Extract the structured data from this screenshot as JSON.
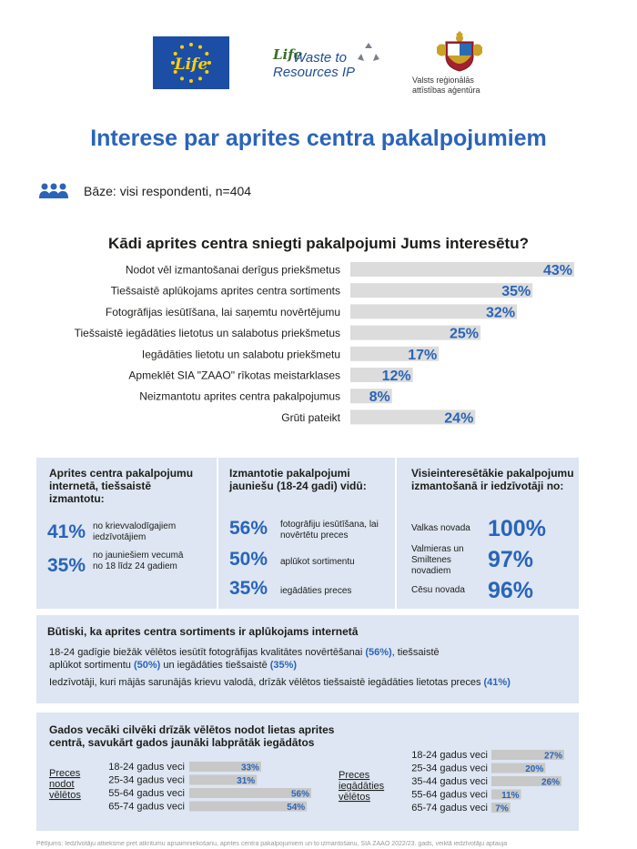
{
  "header": {
    "eu_logo_text": "Life",
    "lwr_logo": {
      "life": "Life",
      "line1": "Waste to",
      "line2": "Resources IP"
    },
    "agency": {
      "line1": "Valsts reģionālās",
      "line2": "attīstības aģentūra"
    }
  },
  "title": "Interese par aprites centra pakalpojumiem",
  "base": {
    "text": "Bāze: visi respondenti, n=404",
    "icon": "people-icon"
  },
  "question": "Kādi aprites centra sniegti pakalpojumi Jums interesētu?",
  "colors": {
    "accent": "#2a64b8",
    "bar": "#dcdcdc",
    "box": "#dde6f2"
  },
  "chart_data": [
    {
      "type": "bar",
      "orientation": "horizontal",
      "categories": [
        "Nodot vēl izmantošanai derīgus priekšmetus",
        "Tiešsaistē aplūkojams aprites centra sortiments",
        "Fotogrāfijas iesūtīšana, lai saņemtu novērtējumu",
        "Tiešsaistē iegādāties lietotus un salabotus priekšmetus",
        "Iegādāties lietotu un salabotu priekšmetu",
        "Apmeklēt SIA \"ZAAO\" rīkotas meistarklases",
        "Neizmantotu aprites centra pakalpojumus",
        "Grūti pateikt"
      ],
      "values": [
        43,
        35,
        32,
        25,
        17,
        12,
        8,
        24
      ],
      "labels": [
        "43%",
        "35%",
        "32%",
        "25%",
        "17%",
        "12%",
        "8%",
        "24%"
      ],
      "xlim": [
        0,
        43
      ]
    },
    {
      "type": "bar",
      "orientation": "horizontal",
      "title": "Preces nodot vēlētos",
      "categories": [
        "18-24 gadus veci",
        "25-34 gadus veci",
        "55-64 gadus veci",
        "65-74 gadus veci"
      ],
      "values": [
        33,
        31,
        56,
        54
      ],
      "labels": [
        "33%",
        "31%",
        "56%",
        "54%"
      ],
      "xlim": [
        0,
        56
      ]
    },
    {
      "type": "bar",
      "orientation": "horizontal",
      "title": "Preces iegādāties vēlētos",
      "categories": [
        "18-24 gadus veci",
        "25-34 gadus veci",
        "35-44 gadus veci",
        "55-64 gadus veci",
        "65-74 gadus veci"
      ],
      "values": [
        27,
        20,
        26,
        11,
        7
      ],
      "labels": [
        "27%",
        "20%",
        "26%",
        "11%",
        "7%"
      ],
      "xlim": [
        0,
        27
      ]
    }
  ],
  "box1": {
    "title": "Aprites centra pakalpojumu internetā, tiešsaistē izmantotu:",
    "items": [
      {
        "pct": "41%",
        "text": "no krievvalodīgajiem iedzīvotājiem"
      },
      {
        "pct": "35%",
        "text": "no jauniešiem vecumā no 18 līdz 24 gadiem"
      }
    ]
  },
  "box2": {
    "title": "Izmantotie pakalpojumi jauniešu (18-24 gadi) vidū:",
    "items": [
      {
        "pct": "56%",
        "text": "fotogrāfiju iesūtīšana, lai novērtētu preces"
      },
      {
        "pct": "50%",
        "text": "aplūkot sortimentu"
      },
      {
        "pct": "35%",
        "text": "iegādāties preces"
      }
    ]
  },
  "box3": {
    "title": "Visieinteresētākie pakalpojumu izmantošanā ir iedzīvotāji no:",
    "items": [
      {
        "text": "Valkas novada",
        "pct": "100%"
      },
      {
        "text": "Valmieras un Smiltenes novadiem",
        "pct": "97%"
      },
      {
        "text": "Cēsu novada",
        "pct": "96%"
      }
    ]
  },
  "box4": {
    "title": "Būtiski, ka aprites centra sortiments ir aplūkojams internetā",
    "p1_a": "18-24 gadīgie biežāk vēlētos iesūtīt fotogrāfijas kvalitātes novērtēšanai ",
    "p1_a_pct": "(56%)",
    "p1_b": ", tiešsaistē aplūkot sortimentu ",
    "p1_b_pct": "(50%)",
    "p1_c": " un iegādāties tiešsaistē ",
    "p1_c_pct": "(35%)",
    "p2": "Iedzīvotāji, kuri mājās sarunājās krievu valodā, drīzāk vēlētos tiešsaistē iegādāties lietotas preces ",
    "p2_pct": "(41%)"
  },
  "box5": {
    "title": "Gados vecāki cilvēki drīzāk vēlētos nodot lietas aprites centrā, savukārt gados jaunāki labprātāk iegādātos"
  },
  "footer": "Pētījums: Iedzīvotāju attieksme pret atkritumu apsaimniekošanu, aprites centra pakalpojumiem un to izmantošanu, SIA ZAAO 2022/23. gads, veiktā iedzīvotāju aptauja"
}
